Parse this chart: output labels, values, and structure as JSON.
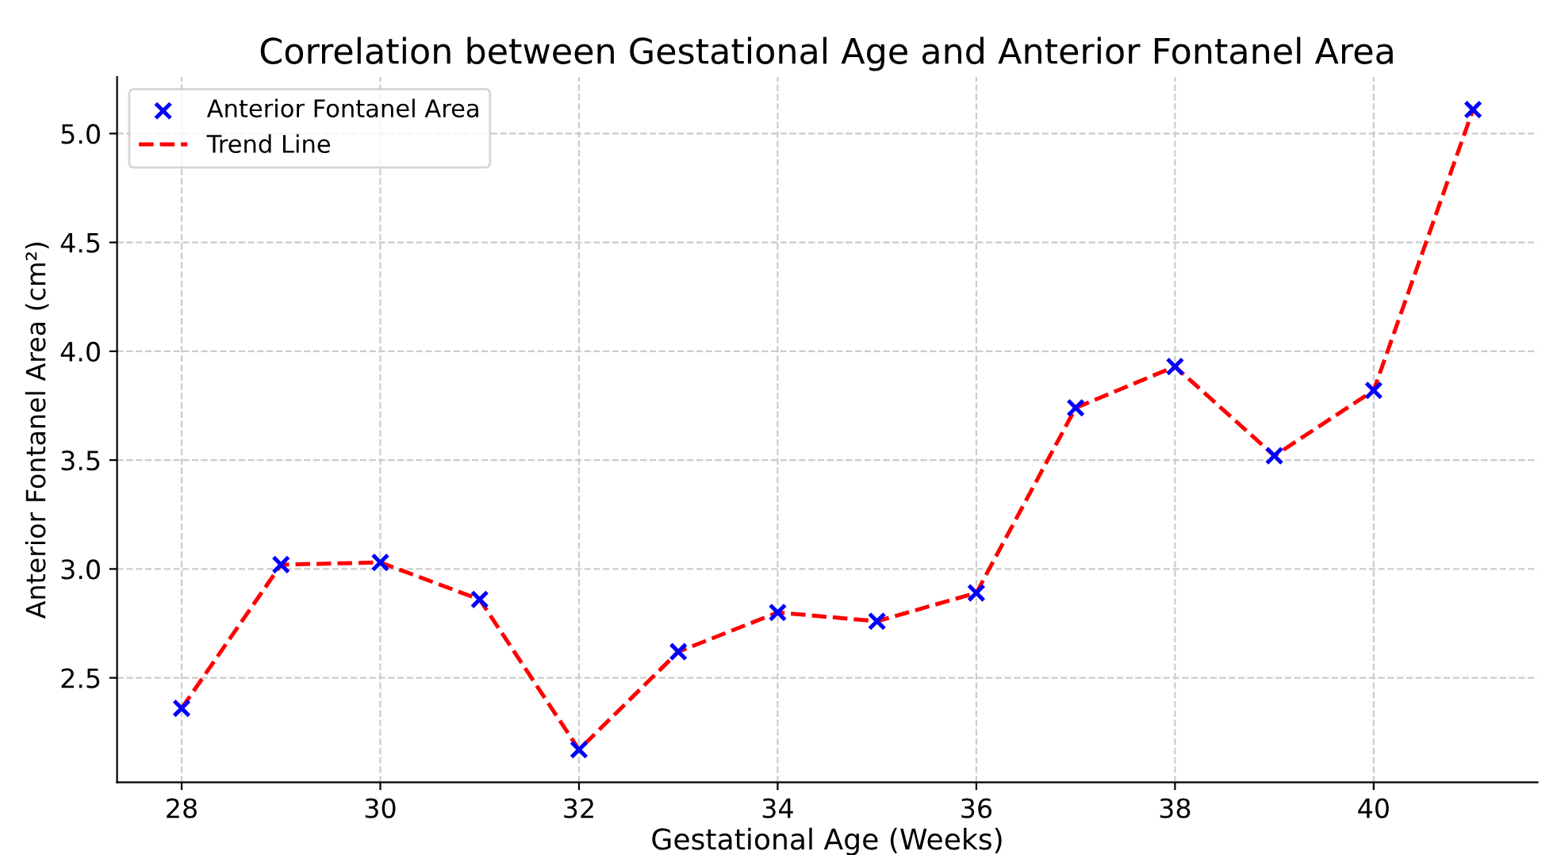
{
  "chart_data": {
    "type": "scatter",
    "title": "Correlation between Gestational Age and Anterior Fontanel Area",
    "xlabel": "Gestational Age (Weeks)",
    "ylabel": "Anterior Fontanel Area (cm²)",
    "x": [
      28,
      29,
      30,
      31,
      32,
      33,
      34,
      35,
      36,
      37,
      38,
      39,
      40,
      41
    ],
    "series": [
      {
        "name": "Anterior Fontanel Area",
        "marker": "cross",
        "color": "#0000ff",
        "values": [
          2.36,
          3.02,
          3.03,
          2.86,
          2.17,
          2.62,
          2.8,
          2.76,
          2.89,
          3.74,
          3.93,
          3.52,
          3.82,
          5.11
        ]
      },
      {
        "name": "Trend Line",
        "type": "line",
        "line_style": "dashed",
        "color": "#ff0000",
        "values": [
          2.36,
          3.02,
          3.03,
          2.86,
          2.17,
          2.62,
          2.8,
          2.76,
          2.89,
          3.74,
          3.93,
          3.52,
          3.82,
          5.11
        ]
      }
    ],
    "xlim": [
      27.35,
      41.65
    ],
    "ylim": [
      2.02,
      5.26
    ],
    "xticks": [
      28,
      30,
      32,
      34,
      36,
      38,
      40
    ],
    "yticks": [
      2.5,
      {
        "value": 3,
        "label": "3.0"
      },
      3.5,
      {
        "value": 4,
        "label": "4.0"
      },
      4.5,
      {
        "value": 5,
        "label": "5.0"
      }
    ],
    "grid": true,
    "legend": "top left"
  }
}
